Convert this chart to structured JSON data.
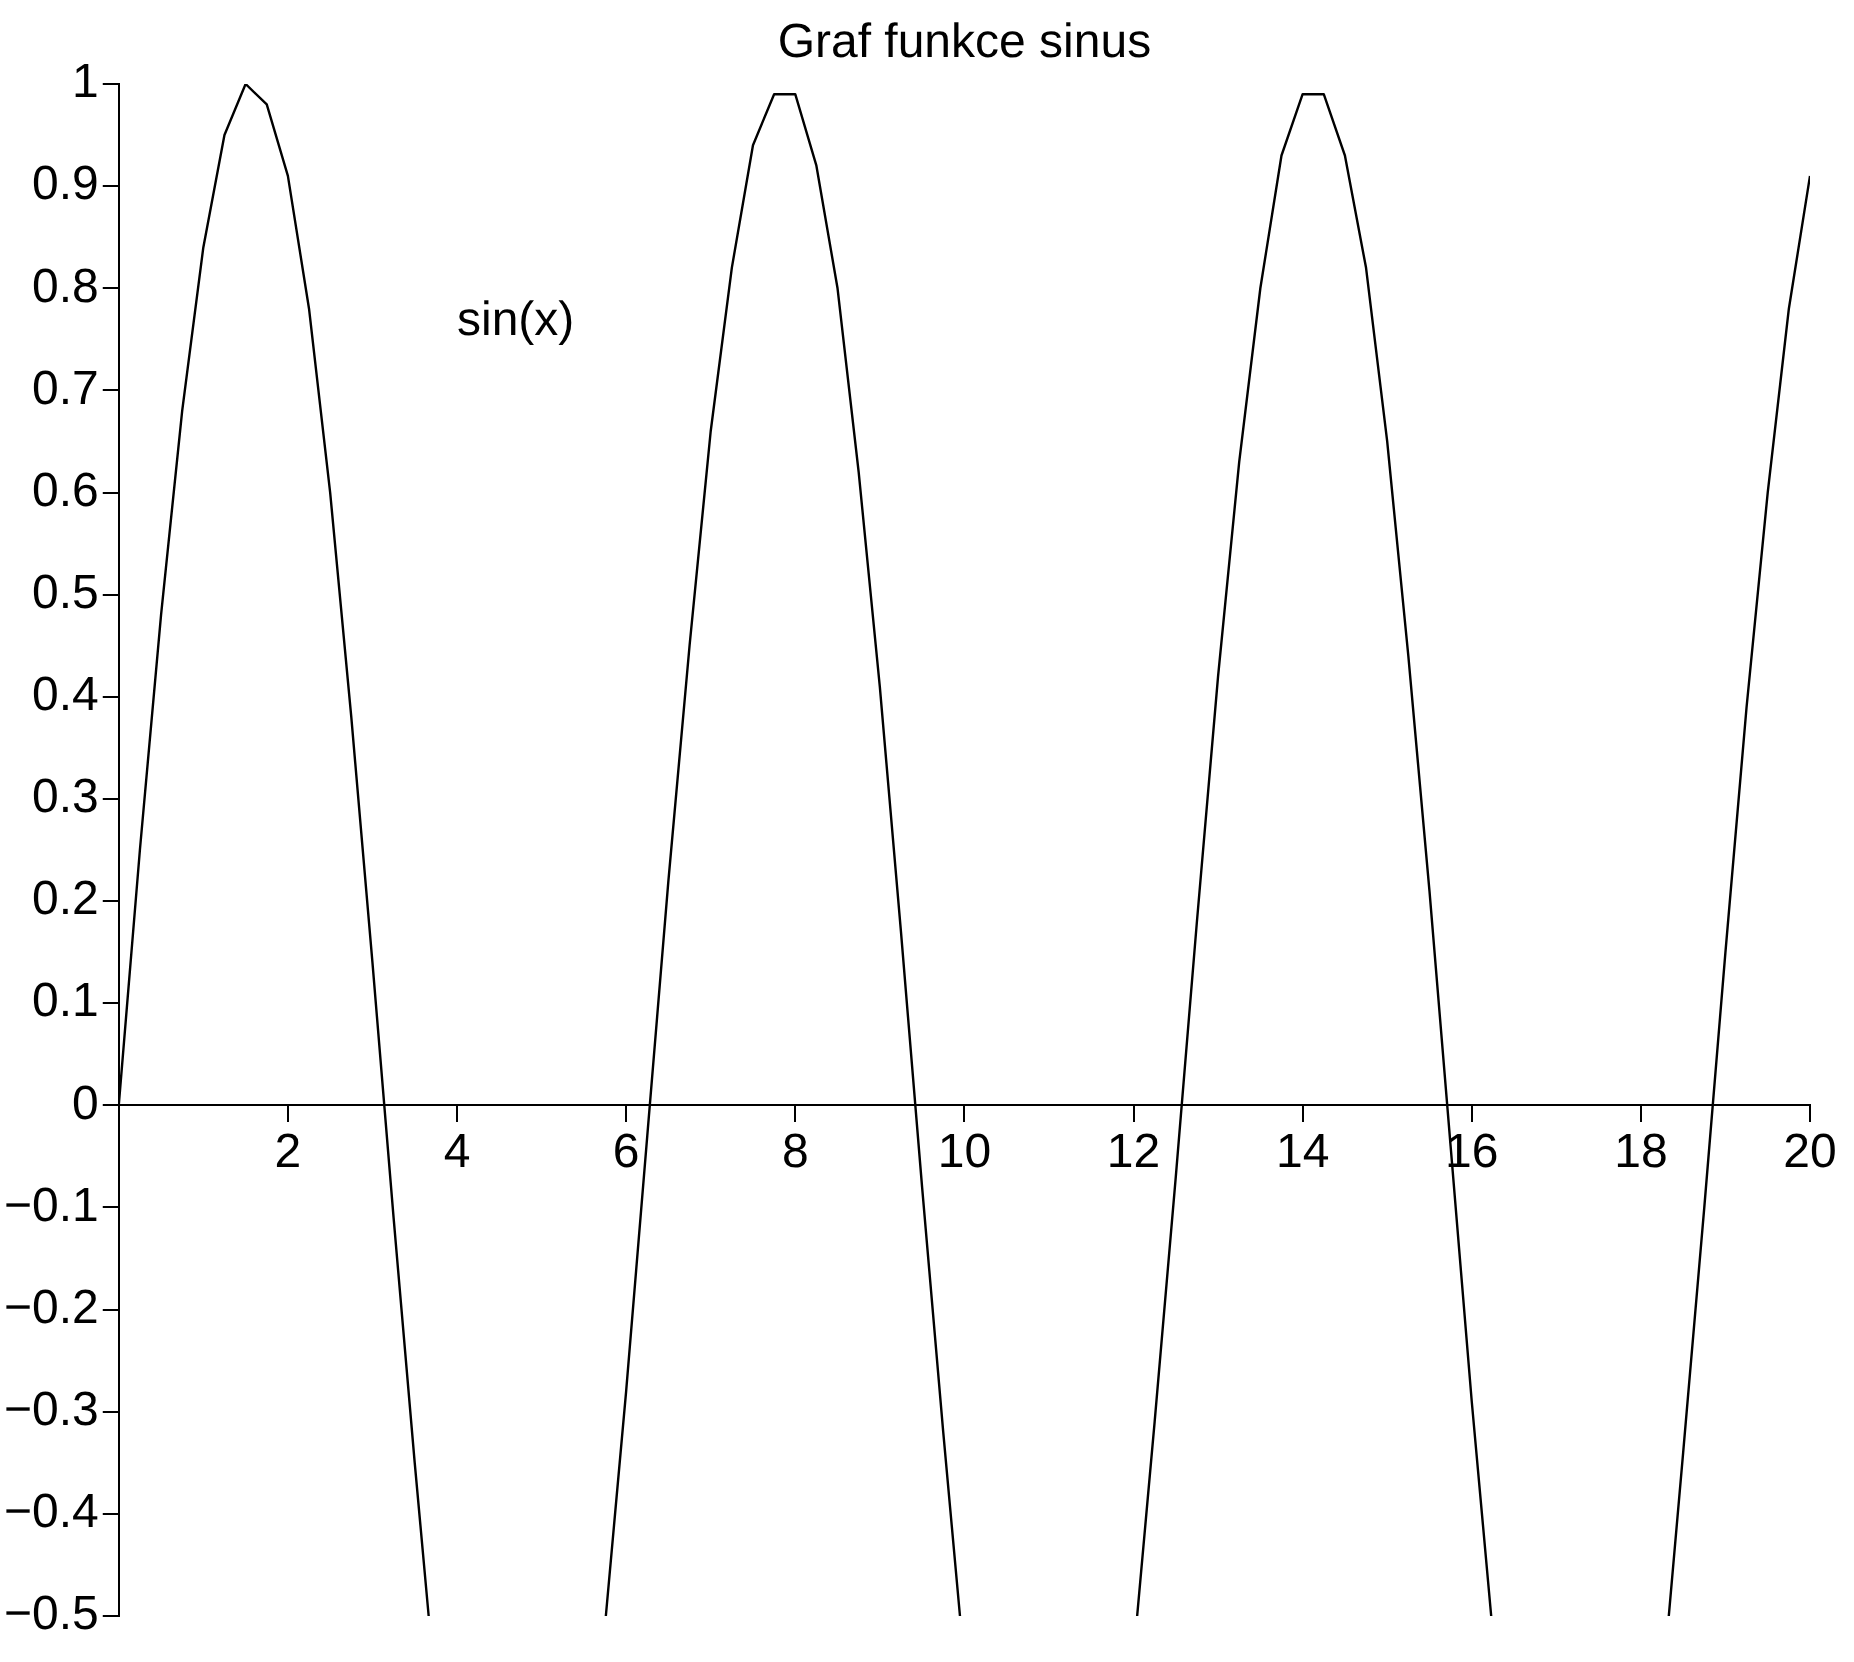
{
  "chart_data": {
    "type": "line",
    "title": "Graf funkce sinus",
    "annotations": [
      "sin(x)"
    ],
    "series": [
      {
        "color": "#000000",
        "x": [
          0,
          0.25,
          0.5,
          0.75,
          1,
          1.25,
          1.5,
          1.75,
          2,
          2.25,
          2.5,
          2.75,
          3,
          3.25,
          3.5,
          3.665,
          4.71,
          5.76,
          6,
          6.25,
          6.5,
          6.75,
          7,
          7.25,
          7.5,
          7.75,
          8,
          8.25,
          8.5,
          8.75,
          9,
          9.25,
          9.5,
          9.75,
          9.948,
          11,
          12.043,
          12.25,
          12.5,
          12.75,
          13,
          13.25,
          13.5,
          13.75,
          14,
          14.25,
          14.5,
          14.75,
          15,
          15.25,
          15.5,
          15.75,
          16,
          16.23,
          17.3,
          18.33,
          18.5,
          18.75,
          19,
          19.25,
          19.5,
          19.75,
          20
        ],
        "values": [
          0,
          0.25,
          0.48,
          0.68,
          0.84,
          0.95,
          1,
          0.98,
          0.91,
          0.78,
          0.6,
          0.38,
          0.14,
          -0.11,
          -0.35,
          -0.5,
          null,
          -0.5,
          -0.28,
          -0.03,
          0.22,
          0.45,
          0.66,
          0.82,
          0.94,
          0.99,
          0.99,
          0.92,
          0.8,
          0.62,
          0.41,
          0.17,
          -0.08,
          -0.32,
          -0.5,
          null,
          -0.5,
          -0.31,
          -0.07,
          0.18,
          0.42,
          0.63,
          0.8,
          0.93,
          0.99,
          0.99,
          0.93,
          0.82,
          0.65,
          0.44,
          0.21,
          -0.04,
          -0.29,
          -0.5,
          null,
          -0.5,
          -0.34,
          -0.1,
          0.15,
          0.39,
          0.6,
          0.78,
          0.91
        ]
      }
    ],
    "xlim": [
      0,
      20
    ],
    "xticks": [
      2,
      4,
      6,
      8,
      10,
      12,
      14,
      16,
      18,
      20
    ],
    "ylim": [
      -0.5,
      1
    ],
    "yticks": [
      {
        "value": -0.5,
        "label": "−0.5"
      },
      {
        "value": -0.4,
        "label": "−0.4"
      },
      {
        "value": -0.3,
        "label": "−0.3"
      },
      {
        "value": -0.2,
        "label": "−0.2"
      },
      {
        "value": -0.1,
        "label": "−0.1"
      },
      0,
      0.1,
      0.2,
      0.3,
      0.4,
      0.5,
      0.6,
      0.7,
      0.8,
      0.9,
      1
    ],
    "grid": false,
    "legend": false,
    "marker": "none",
    "line_style": "solid"
  }
}
